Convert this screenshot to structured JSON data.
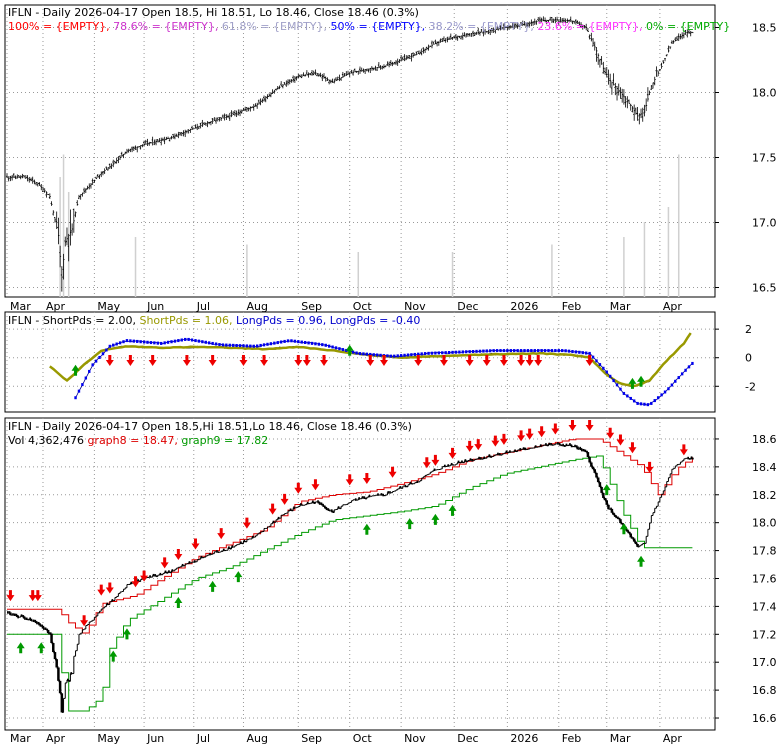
{
  "chart_data": [
    {
      "type": "candlestick",
      "panel": "price",
      "legend": [
        "100% = {EMPTY},",
        "78.6% = {EMPTY},",
        "61.8% = {EMPTY},",
        "50% = {EMPTY},",
        "38.2% = {EMPTY},",
        "23.6% = {EMPTY},",
        "0% = {EMPTY}"
      ],
      "legend_colors": [
        "#ff0000",
        "#cc33cc",
        "#a0a0c8",
        "#0000ff",
        "#9999cc",
        "#ff33ff",
        "#00aa00"
      ],
      "legend_prefix": "IFLN - Daily 2026-04-17 Open 18.5, Hi 18.51, Lo 18.46, Close 18.46 (0.3%)",
      "ylim": [
        16.45,
        18.65
      ],
      "y_ticks": [
        "18.5",
        "18.0",
        "17.5",
        "17.0",
        "16.5"
      ],
      "y_tick_values": [
        18.5,
        18.0,
        17.5,
        17.0,
        16.5
      ],
      "x_labels": [
        "Mar",
        "Apr",
        "May",
        "Jun",
        "Jul",
        "Aug",
        "Sep",
        "Oct",
        "Nov",
        "Dec",
        "2026",
        "Feb",
        "Mar",
        "Apr"
      ],
      "x_label_days": [
        0,
        21,
        51,
        80,
        109,
        138,
        170,
        200,
        230,
        261,
        292,
        322,
        350,
        381
      ],
      "total_days": 412,
      "close_keypoints": [
        [
          0,
          17.35
        ],
        [
          10,
          17.35
        ],
        [
          18,
          17.3
        ],
        [
          25,
          17.2
        ],
        [
          30,
          16.9
        ],
        [
          32,
          16.58
        ],
        [
          34,
          16.85
        ],
        [
          38,
          16.95
        ],
        [
          42,
          17.2
        ],
        [
          48,
          17.28
        ],
        [
          55,
          17.38
        ],
        [
          62,
          17.45
        ],
        [
          70,
          17.55
        ],
        [
          80,
          17.6
        ],
        [
          95,
          17.65
        ],
        [
          110,
          17.73
        ],
        [
          120,
          17.78
        ],
        [
          130,
          17.82
        ],
        [
          145,
          17.9
        ],
        [
          160,
          18.05
        ],
        [
          170,
          18.12
        ],
        [
          180,
          18.15
        ],
        [
          190,
          18.08
        ],
        [
          200,
          18.15
        ],
        [
          210,
          18.18
        ],
        [
          220,
          18.2
        ],
        [
          230,
          18.25
        ],
        [
          240,
          18.3
        ],
        [
          250,
          18.38
        ],
        [
          260,
          18.42
        ],
        [
          270,
          18.45
        ],
        [
          280,
          18.47
        ],
        [
          290,
          18.5
        ],
        [
          300,
          18.52
        ],
        [
          310,
          18.55
        ],
        [
          320,
          18.56
        ],
        [
          330,
          18.55
        ],
        [
          338,
          18.5
        ],
        [
          344,
          18.32
        ],
        [
          350,
          18.12
        ],
        [
          358,
          18.0
        ],
        [
          364,
          17.9
        ],
        [
          368,
          17.82
        ],
        [
          372,
          17.85
        ],
        [
          376,
          18.05
        ],
        [
          382,
          18.2
        ],
        [
          388,
          18.38
        ],
        [
          396,
          18.46
        ],
        [
          412,
          18.46
        ]
      ],
      "volume_spikes": [
        [
          31,
          0.8
        ],
        [
          33,
          0.95
        ],
        [
          36,
          0.7
        ],
        [
          75,
          0.4
        ],
        [
          140,
          0.35
        ],
        [
          205,
          0.3
        ],
        [
          260,
          0.3
        ],
        [
          318,
          0.35
        ],
        [
          360,
          0.4
        ],
        [
          372,
          0.5
        ],
        [
          386,
          0.6
        ],
        [
          392,
          0.95
        ]
      ]
    },
    {
      "type": "line",
      "panel": "oscillator",
      "legend": [
        "IFLN - ShortPds = 2.00,",
        "ShortPds = 1.06,",
        "LongPds = 0.96,",
        "LongPds = -0.40"
      ],
      "legend_colors": [
        "#000000",
        "#999900",
        "#0000cc",
        "#0000cc"
      ],
      "ylim": [
        -3.8,
        3.2
      ],
      "y_ticks": [
        "2",
        "0",
        "-2"
      ],
      "y_tick_values": [
        2,
        0,
        -2
      ],
      "short_line_keypoints": [
        [
          25,
          -0.6
        ],
        [
          35,
          -1.6
        ],
        [
          45,
          -0.5
        ],
        [
          55,
          0.5
        ],
        [
          70,
          0.8
        ],
        [
          90,
          0.7
        ],
        [
          110,
          0.75
        ],
        [
          130,
          0.7
        ],
        [
          150,
          0.6
        ],
        [
          170,
          0.75
        ],
        [
          190,
          0.5
        ],
        [
          210,
          0.2
        ],
        [
          230,
          0.0
        ],
        [
          250,
          0.1
        ],
        [
          270,
          0.2
        ],
        [
          290,
          0.25
        ],
        [
          310,
          0.3
        ],
        [
          330,
          0.2
        ],
        [
          340,
          0.0
        ],
        [
          350,
          -1.2
        ],
        [
          358,
          -1.8
        ],
        [
          366,
          -2.0
        ],
        [
          375,
          -1.6
        ],
        [
          385,
          -0.2
        ],
        [
          395,
          1.0
        ],
        [
          400,
          1.9
        ]
      ],
      "long_line_keypoints": [
        [
          40,
          -2.8
        ],
        [
          50,
          -0.5
        ],
        [
          60,
          0.8
        ],
        [
          70,
          1.2
        ],
        [
          90,
          1.0
        ],
        [
          105,
          1.3
        ],
        [
          125,
          0.9
        ],
        [
          145,
          0.8
        ],
        [
          165,
          1.2
        ],
        [
          185,
          0.9
        ],
        [
          205,
          0.3
        ],
        [
          225,
          0.1
        ],
        [
          245,
          0.3
        ],
        [
          265,
          0.4
        ],
        [
          285,
          0.5
        ],
        [
          305,
          0.5
        ],
        [
          325,
          0.5
        ],
        [
          340,
          0.3
        ],
        [
          350,
          -1.0
        ],
        [
          360,
          -2.5
        ],
        [
          368,
          -3.2
        ],
        [
          375,
          -3.3
        ],
        [
          385,
          -2.3
        ],
        [
          395,
          -1.0
        ],
        [
          400,
          -0.4
        ]
      ],
      "up_arrow_days": [
        40,
        200,
        365,
        370
      ],
      "down_arrow_days": [
        60,
        72,
        85,
        105,
        120,
        138,
        150,
        170,
        175,
        185,
        212,
        220,
        240,
        255,
        270,
        280,
        290,
        300,
        305,
        310,
        340
      ]
    },
    {
      "type": "line",
      "panel": "price-bands",
      "legend_line1": "IFLN - Daily 2026-04-17 Open 18.5,Hi 18.51,Lo 18.46, Close 18.46 (0.3%)",
      "legend_vol": "Vol 4,362,476",
      "legend_graph8": "graph8 = 18.47,",
      "legend_graph9": "graph9 = 17.82",
      "ylim": [
        16.55,
        18.7
      ],
      "y_ticks": [
        "18.6",
        "18.4",
        "18.2",
        "18.0",
        "17.8",
        "17.6",
        "17.4",
        "17.2",
        "17.0",
        "16.8",
        "16.6"
      ],
      "y_tick_values": [
        18.6,
        18.4,
        18.2,
        18.0,
        17.8,
        17.6,
        17.4,
        17.2,
        17.0,
        16.8,
        16.6
      ],
      "close_keypoints": [
        [
          0,
          17.35
        ],
        [
          10,
          17.32
        ],
        [
          18,
          17.28
        ],
        [
          25,
          17.2
        ],
        [
          30,
          16.9
        ],
        [
          32,
          16.62
        ],
        [
          34,
          16.85
        ],
        [
          38,
          16.95
        ],
        [
          42,
          17.2
        ],
        [
          48,
          17.28
        ],
        [
          55,
          17.38
        ],
        [
          62,
          17.45
        ],
        [
          70,
          17.55
        ],
        [
          80,
          17.6
        ],
        [
          95,
          17.65
        ],
        [
          110,
          17.73
        ],
        [
          120,
          17.78
        ],
        [
          130,
          17.82
        ],
        [
          145,
          17.9
        ],
        [
          160,
          18.05
        ],
        [
          170,
          18.12
        ],
        [
          180,
          18.15
        ],
        [
          190,
          18.08
        ],
        [
          200,
          18.15
        ],
        [
          210,
          18.18
        ],
        [
          220,
          18.2
        ],
        [
          230,
          18.25
        ],
        [
          240,
          18.3
        ],
        [
          250,
          18.38
        ],
        [
          260,
          18.42
        ],
        [
          270,
          18.45
        ],
        [
          280,
          18.47
        ],
        [
          290,
          18.5
        ],
        [
          300,
          18.52
        ],
        [
          310,
          18.55
        ],
        [
          320,
          18.56
        ],
        [
          330,
          18.55
        ],
        [
          338,
          18.5
        ],
        [
          344,
          18.32
        ],
        [
          350,
          18.12
        ],
        [
          358,
          18.0
        ],
        [
          364,
          17.9
        ],
        [
          368,
          17.82
        ],
        [
          372,
          17.85
        ],
        [
          376,
          18.05
        ],
        [
          382,
          18.2
        ],
        [
          388,
          18.38
        ],
        [
          396,
          18.46
        ],
        [
          412,
          18.46
        ]
      ],
      "graph8_keypoints": [
        [
          0,
          17.38
        ],
        [
          30,
          17.38
        ],
        [
          34,
          17.3
        ],
        [
          45,
          17.2
        ],
        [
          55,
          17.42
        ],
        [
          75,
          17.48
        ],
        [
          90,
          17.6
        ],
        [
          110,
          17.75
        ],
        [
          130,
          17.85
        ],
        [
          150,
          17.95
        ],
        [
          170,
          18.15
        ],
        [
          190,
          18.2
        ],
        [
          210,
          18.22
        ],
        [
          230,
          18.28
        ],
        [
          250,
          18.35
        ],
        [
          270,
          18.45
        ],
        [
          290,
          18.5
        ],
        [
          310,
          18.55
        ],
        [
          330,
          18.6
        ],
        [
          345,
          18.6
        ],
        [
          355,
          18.52
        ],
        [
          370,
          18.4
        ],
        [
          380,
          18.2
        ],
        [
          390,
          18.38
        ],
        [
          400,
          18.47
        ]
      ],
      "graph9_keypoints": [
        [
          0,
          17.2
        ],
        [
          30,
          17.2
        ],
        [
          34,
          16.65
        ],
        [
          45,
          16.65
        ],
        [
          55,
          16.75
        ],
        [
          60,
          17.1
        ],
        [
          70,
          17.3
        ],
        [
          90,
          17.45
        ],
        [
          110,
          17.6
        ],
        [
          130,
          17.68
        ],
        [
          150,
          17.8
        ],
        [
          170,
          17.92
        ],
        [
          190,
          18.02
        ],
        [
          210,
          18.05
        ],
        [
          230,
          18.08
        ],
        [
          250,
          18.12
        ],
        [
          270,
          18.25
        ],
        [
          290,
          18.35
        ],
        [
          310,
          18.4
        ],
        [
          330,
          18.45
        ],
        [
          345,
          18.48
        ],
        [
          358,
          18.1
        ],
        [
          370,
          17.82
        ],
        [
          400,
          17.82
        ]
      ],
      "up_arrow_days": [
        8,
        20,
        62,
        70,
        100,
        120,
        135,
        210,
        235,
        250,
        260,
        350,
        360,
        370
      ],
      "down_arrow_days": [
        2,
        15,
        18,
        45,
        55,
        60,
        75,
        80,
        92,
        100,
        110,
        125,
        140,
        155,
        162,
        170,
        180,
        200,
        210,
        225,
        245,
        250,
        260,
        270,
        275,
        285,
        290,
        300,
        305,
        312,
        320,
        330,
        340,
        352,
        358,
        365,
        375,
        395
      ]
    }
  ]
}
